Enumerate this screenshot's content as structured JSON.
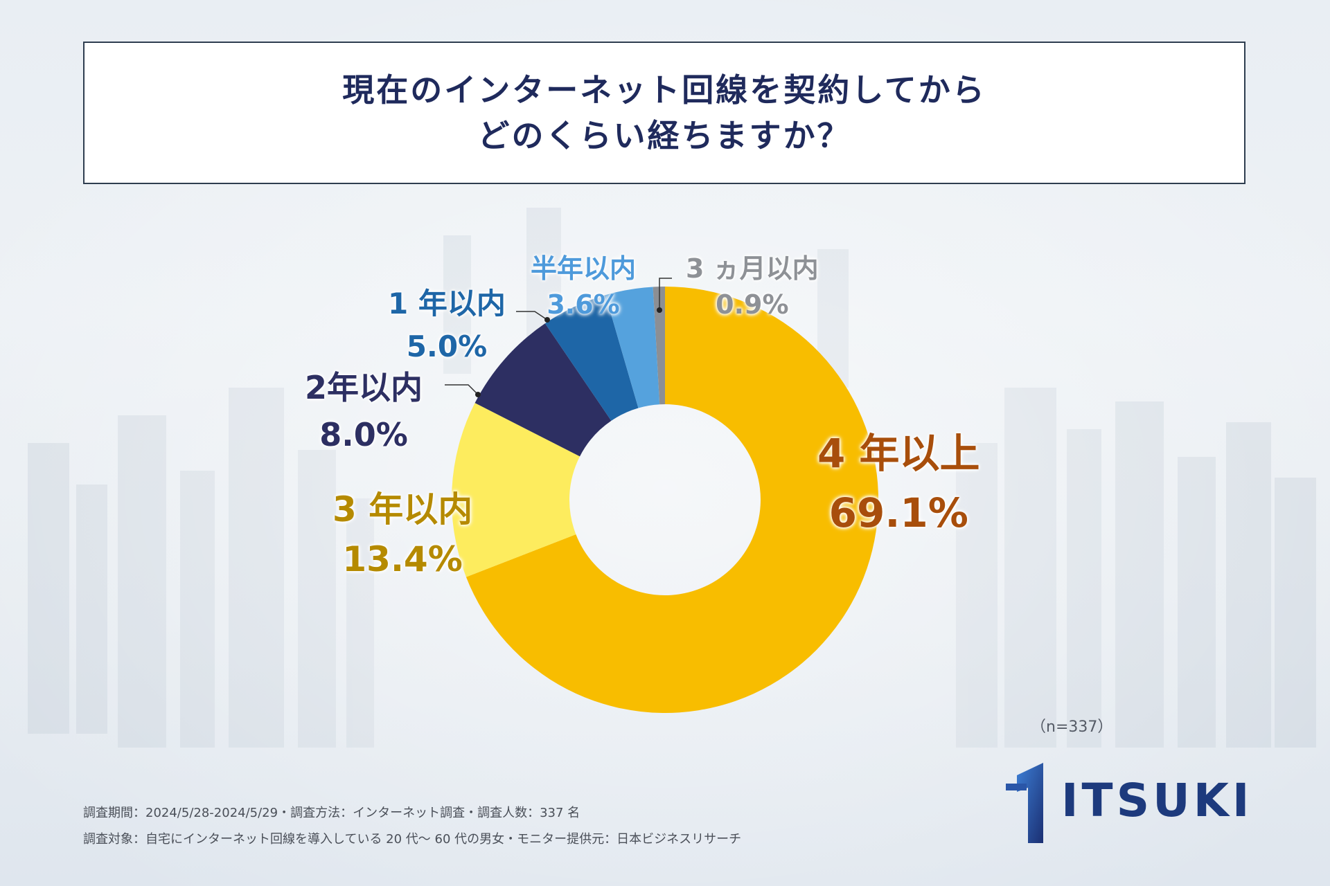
{
  "title": {
    "line1": "現在のインターネット回線を契約してから",
    "line2": "どのくらい経ちますか？"
  },
  "chart_data": {
    "type": "pie",
    "title": "現在のインターネット回線を契約してからどのくらい経ちますか？",
    "hole": "donut",
    "n_label": "（n=337）",
    "slices": [
      {
        "name": "4 年以上",
        "pct_label": "69.1%",
        "value": 69.1,
        "color": "#F8BD00",
        "label_color": "#A84E0B"
      },
      {
        "name": "3 年以内",
        "pct_label": "13.4%",
        "value": 13.4,
        "color": "#FDEC5E",
        "label_color": "#B58A00"
      },
      {
        "name": "2年以内",
        "pct_label": "8.0%",
        "value": 8.0,
        "color": "#2D2F62",
        "label_color": "#2D2F62"
      },
      {
        "name": "1 年以内",
        "pct_label": "5.0%",
        "value": 5.0,
        "color": "#1E66A7",
        "label_color": "#1E66A7"
      },
      {
        "name": "半年以内",
        "pct_label": "3.6%",
        "value": 3.6,
        "color": "#55A2DD",
        "label_color": "#4E9ADB"
      },
      {
        "name": "3 ヵ月以内",
        "pct_label": "0.9%",
        "value": 0.9,
        "color": "#8C8F94",
        "label_color": "#8E9196"
      }
    ]
  },
  "footer": {
    "line1": "調査期間：2024/5/28-2024/5/29・調査方法：インターネット調査・調査人数：337 名",
    "line2": "調査対象：自宅にインターネット回線を導入している 20 代～ 60 代の男女・モニター提供元：日本ビジネスリサーチ"
  },
  "logo": {
    "text": "ITSUKI",
    "color": "#1D3A7D"
  }
}
